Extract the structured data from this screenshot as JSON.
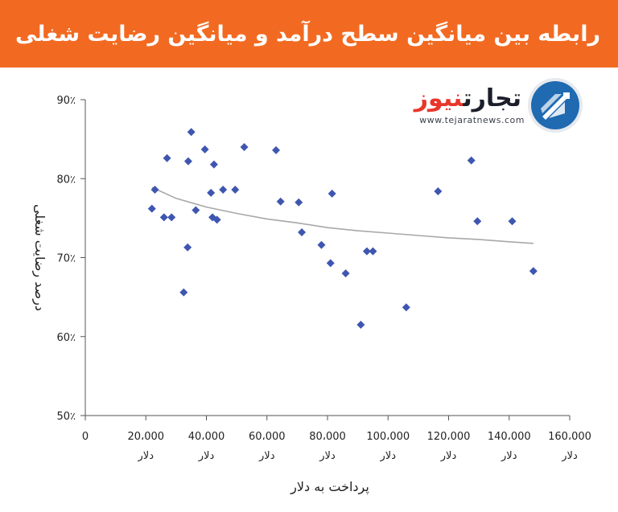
{
  "header": {
    "title": "رابطه بین میانگین سطح درآمد و میانگین رضایت شغلی"
  },
  "logo": {
    "name_part1": "تجارت",
    "name_part2": "نیوز",
    "url": "www.tejaratnews.com"
  },
  "colors": {
    "header": "#f26a21",
    "marker": "#3f56b0",
    "trend": "#a8a8a8",
    "logo_blue": "#1f6ab0",
    "logo_red": "#e8362b"
  },
  "chart_data": {
    "type": "scatter",
    "title": "",
    "xlabel": "پرداخت به دلار",
    "ylabel": "درصد رضایت شغلی",
    "xlim": [
      0,
      160000
    ],
    "ylim": [
      50,
      90
    ],
    "x_ticks": [
      0,
      20000,
      40000,
      60000,
      80000,
      100000,
      120000,
      140000,
      160000
    ],
    "x_tick_labels": [
      "0",
      "20،000",
      "40،000",
      "60،000",
      "80،000",
      "100،000",
      "120،000",
      "140،000",
      "160،000"
    ],
    "x_tick_unit": "دلار",
    "y_ticks": [
      50,
      60,
      70,
      80,
      90
    ],
    "y_tick_labels": [
      "50٪",
      "60٪",
      "70٪",
      "80٪",
      "90٪"
    ],
    "grid": false,
    "legend": "none",
    "points": [
      {
        "x": 22000,
        "y": 76.2
      },
      {
        "x": 23000,
        "y": 78.6
      },
      {
        "x": 26000,
        "y": 75.1
      },
      {
        "x": 27000,
        "y": 82.6
      },
      {
        "x": 28500,
        "y": 75.1
      },
      {
        "x": 32500,
        "y": 65.6
      },
      {
        "x": 33800,
        "y": 71.3
      },
      {
        "x": 34000,
        "y": 82.2
      },
      {
        "x": 35000,
        "y": 85.9
      },
      {
        "x": 36500,
        "y": 76.0
      },
      {
        "x": 39500,
        "y": 83.7
      },
      {
        "x": 41500,
        "y": 78.2
      },
      {
        "x": 42000,
        "y": 75.1
      },
      {
        "x": 42500,
        "y": 81.8
      },
      {
        "x": 43500,
        "y": 74.8
      },
      {
        "x": 45500,
        "y": 78.6
      },
      {
        "x": 49500,
        "y": 78.6
      },
      {
        "x": 52500,
        "y": 84.0
      },
      {
        "x": 63000,
        "y": 83.6
      },
      {
        "x": 64500,
        "y": 77.1
      },
      {
        "x": 70500,
        "y": 77.0
      },
      {
        "x": 71500,
        "y": 73.2
      },
      {
        "x": 78000,
        "y": 71.6
      },
      {
        "x": 81000,
        "y": 69.3
      },
      {
        "x": 81500,
        "y": 78.1
      },
      {
        "x": 86000,
        "y": 68.0
      },
      {
        "x": 91000,
        "y": 61.5
      },
      {
        "x": 93000,
        "y": 70.8
      },
      {
        "x": 95000,
        "y": 70.8
      },
      {
        "x": 106000,
        "y": 63.7
      },
      {
        "x": 116500,
        "y": 78.4
      },
      {
        "x": 127500,
        "y": 82.3
      },
      {
        "x": 129500,
        "y": 74.6
      },
      {
        "x": 141000,
        "y": 74.6
      },
      {
        "x": 148000,
        "y": 68.3
      }
    ],
    "trendline": [
      {
        "x": 22000,
        "y": 78.9
      },
      {
        "x": 30000,
        "y": 77.5
      },
      {
        "x": 40000,
        "y": 76.4
      },
      {
        "x": 50000,
        "y": 75.6
      },
      {
        "x": 60000,
        "y": 74.9
      },
      {
        "x": 70000,
        "y": 74.4
      },
      {
        "x": 80000,
        "y": 73.8
      },
      {
        "x": 90000,
        "y": 73.4
      },
      {
        "x": 100000,
        "y": 73.1
      },
      {
        "x": 110000,
        "y": 72.8
      },
      {
        "x": 120000,
        "y": 72.5
      },
      {
        "x": 130000,
        "y": 72.3
      },
      {
        "x": 140000,
        "y": 72.0
      },
      {
        "x": 148000,
        "y": 71.8
      }
    ]
  }
}
